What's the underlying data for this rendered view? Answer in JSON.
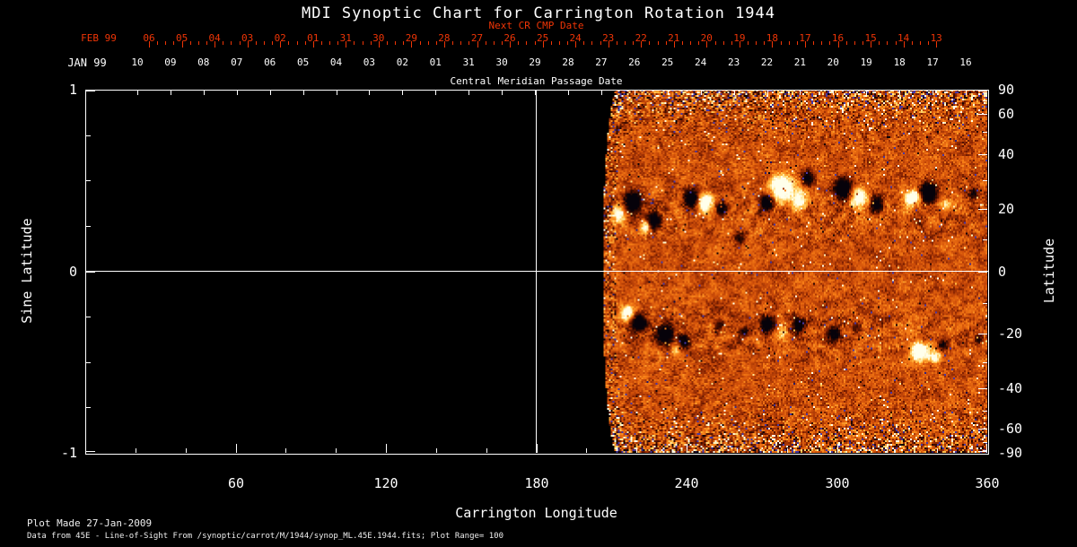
{
  "title": "MDI Synoptic Chart for Carrington Rotation 1944",
  "next_cr_axis": {
    "label": "Next CR CMP Date",
    "month": "FEB 99",
    "dates": [
      "06",
      "05",
      "04",
      "03",
      "02",
      "01",
      "31",
      "30",
      "29",
      "28",
      "27",
      "26",
      "25",
      "24",
      "23",
      "22",
      "21",
      "20",
      "19",
      "18",
      "17",
      "16",
      "15",
      "14",
      "13"
    ],
    "color": "#ef3506"
  },
  "cmp_axis": {
    "label": "Central Meridian Passage Date",
    "month": "JAN 99",
    "dates": [
      "10",
      "09",
      "08",
      "07",
      "06",
      "05",
      "04",
      "03",
      "02",
      "01",
      "31",
      "30",
      "29",
      "28",
      "27",
      "26",
      "25",
      "24",
      "23",
      "22",
      "21",
      "20",
      "19",
      "18",
      "17",
      "16"
    ]
  },
  "axes": {
    "left": {
      "label": "Sine Latitude",
      "ticks": [
        "1",
        "0",
        "-1"
      ]
    },
    "right": {
      "label": "Latitude",
      "ticks": [
        "90",
        "60",
        "40",
        "20",
        "0",
        "-20",
        "-40",
        "-60",
        "-90"
      ]
    },
    "bottom": {
      "label": "Carrington Longitude",
      "ticks": [
        "60",
        "120",
        "180",
        "240",
        "300",
        "360"
      ]
    }
  },
  "footer": {
    "line1": "Plot Made 27-Jan-2009",
    "line2": "Data from 45E - Line-of-Sight From /synoptic/carrot/M/1944/synop_ML.45E.1944.fits; Plot Range=  100"
  },
  "chart_data": {
    "type": "heatmap",
    "title": "MDI Synoptic Chart for Carrington Rotation 1944",
    "xlabel": "Carrington Longitude",
    "ylabel_left": "Sine Latitude",
    "ylabel_right": "Latitude",
    "x_range": [
      0,
      360
    ],
    "y_range_sine": [
      -1,
      1
    ],
    "data_lon_start": 206.5,
    "edge_curve_deg": 6,
    "plot_range_gauss": 100,
    "background_color": "#000000",
    "base_color": "#d05008",
    "palette": [
      [
        -1.15,
        70,
        55,
        165
      ],
      [
        -1.05,
        30,
        20,
        95
      ],
      [
        -1.0,
        6,
        2,
        10
      ],
      [
        -0.6,
        52,
        9,
        0
      ],
      [
        -0.3,
        132,
        34,
        2
      ],
      [
        0.0,
        208,
        79,
        10
      ],
      [
        0.3,
        246,
        124,
        22
      ],
      [
        0.6,
        255,
        184,
        62
      ],
      [
        0.85,
        255,
        230,
        148
      ],
      [
        1.15,
        255,
        255,
        235
      ]
    ],
    "noise": {
      "seed": 19440127,
      "fine_amp": 0.3,
      "polar_amp": 0.8,
      "polar_power": 6,
      "coarse_amp": 0.18,
      "band_center_sine": 0.33,
      "band_width_sine": 0.15,
      "speckle_base": 0.015,
      "speckle_polar": 0.32,
      "edge_boost": 0.35
    },
    "active_regions": [
      [
        213.0,
        0.31,
        3.2,
        1.6
      ],
      [
        218.5,
        0.38,
        3.6,
        -1.8
      ],
      [
        227.0,
        0.28,
        2.8,
        -1.5
      ],
      [
        223.5,
        0.245,
        2.2,
        1.2
      ],
      [
        241.8,
        0.4,
        2.8,
        -1.7
      ],
      [
        248.0,
        0.37,
        3.2,
        1.6
      ],
      [
        254.0,
        0.345,
        2.4,
        -1.4
      ],
      [
        261.0,
        0.18,
        2.0,
        -0.8
      ],
      [
        272.0,
        0.38,
        2.8,
        -1.6
      ],
      [
        278.0,
        0.465,
        4.5,
        1.9
      ],
      [
        285.0,
        0.4,
        3.2,
        1.5
      ],
      [
        288.5,
        0.51,
        2.6,
        -1.2
      ],
      [
        302.5,
        0.455,
        3.4,
        -1.8
      ],
      [
        309.0,
        0.4,
        3.4,
        1.7
      ],
      [
        316.0,
        0.365,
        2.6,
        -1.4
      ],
      [
        330.5,
        0.4,
        3.0,
        1.6
      ],
      [
        336.5,
        0.43,
        3.4,
        -1.8
      ],
      [
        343.0,
        0.37,
        2.2,
        1.1
      ],
      [
        354.5,
        0.43,
        1.8,
        -1.0
      ],
      [
        216.5,
        -0.235,
        2.6,
        1.4
      ],
      [
        221.0,
        -0.285,
        3.0,
        -1.6
      ],
      [
        231.5,
        -0.345,
        3.4,
        -1.6
      ],
      [
        239.0,
        -0.385,
        2.6,
        -1.2
      ],
      [
        235.5,
        -0.42,
        1.8,
        0.9
      ],
      [
        253.0,
        -0.3,
        2.0,
        -0.7
      ],
      [
        263.0,
        -0.33,
        2.0,
        -0.6
      ],
      [
        272.0,
        -0.295,
        3.0,
        -1.5
      ],
      [
        278.5,
        -0.335,
        2.2,
        1.0
      ],
      [
        285.0,
        -0.295,
        2.6,
        -1.4
      ],
      [
        299.0,
        -0.345,
        2.6,
        -1.2
      ],
      [
        308.0,
        -0.31,
        1.8,
        -0.6
      ],
      [
        333.0,
        -0.44,
        3.4,
        1.8
      ],
      [
        339.5,
        -0.47,
        2.2,
        1.2
      ],
      [
        342.5,
        -0.405,
        2.2,
        -1.0
      ],
      [
        356.5,
        -0.375,
        1.8,
        -0.8
      ]
    ]
  }
}
